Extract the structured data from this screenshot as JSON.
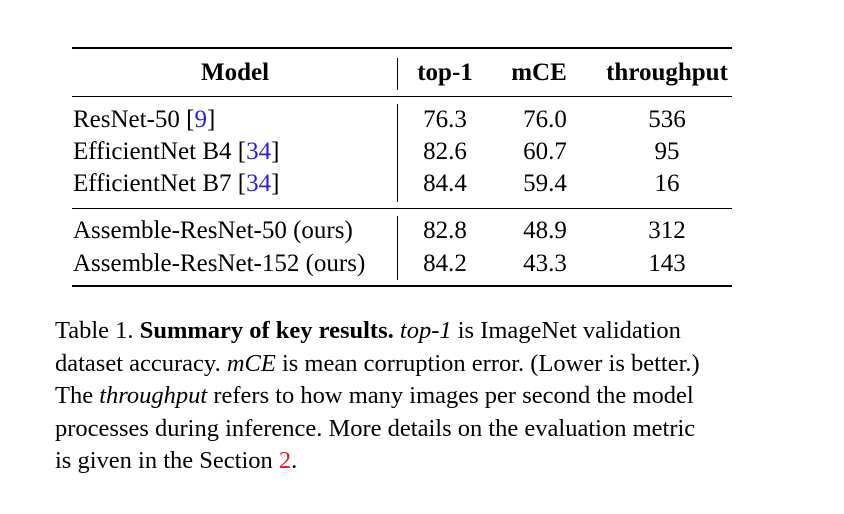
{
  "table": {
    "headers": {
      "model": "Model",
      "top1": "top-1",
      "mce": "mCE",
      "throughput": "throughput"
    },
    "group1": [
      {
        "model": "ResNet-50 [",
        "cite": "9",
        "cite_close": "]",
        "top1": "76.3",
        "mce": "76.0",
        "throughput": "536"
      },
      {
        "model": "EfficientNet B4 [",
        "cite": "34",
        "cite_close": "]",
        "top1": "82.6",
        "mce": "60.7",
        "throughput": "95"
      },
      {
        "model": "EfficientNet B7 [",
        "cite": "34",
        "cite_close": "]",
        "top1": "84.4",
        "mce": "59.4",
        "throughput": "16"
      }
    ],
    "group2": [
      {
        "model": "Assemble-ResNet-50 (ours)",
        "top1": "82.8",
        "mce": "48.9",
        "throughput": "312"
      },
      {
        "model": "Assemble-ResNet-152 (ours)",
        "top1": "84.2",
        "mce": "43.3",
        "throughput": "143"
      }
    ]
  },
  "caption": {
    "label": "Table 1.",
    "title": "Summary of key results.",
    "l1_term": "top-1",
    "l1_rest": "is ImageNet validation",
    "l2_start": "dataset accuracy.",
    "l2_term": "mCE",
    "l2_rest": "is mean corruption error. (Lower is better.)",
    "l3_start": "The",
    "l3_term": "throughput",
    "l3_rest": "refers to how many images per second the model",
    "l4": "processes during inference. More details on the evaluation metric",
    "l5_start": "is given in the Section",
    "l5_ref": "2",
    "l5_end": "."
  },
  "colors": {
    "citation": "#2222dd",
    "section_ref": "#dd2222"
  }
}
